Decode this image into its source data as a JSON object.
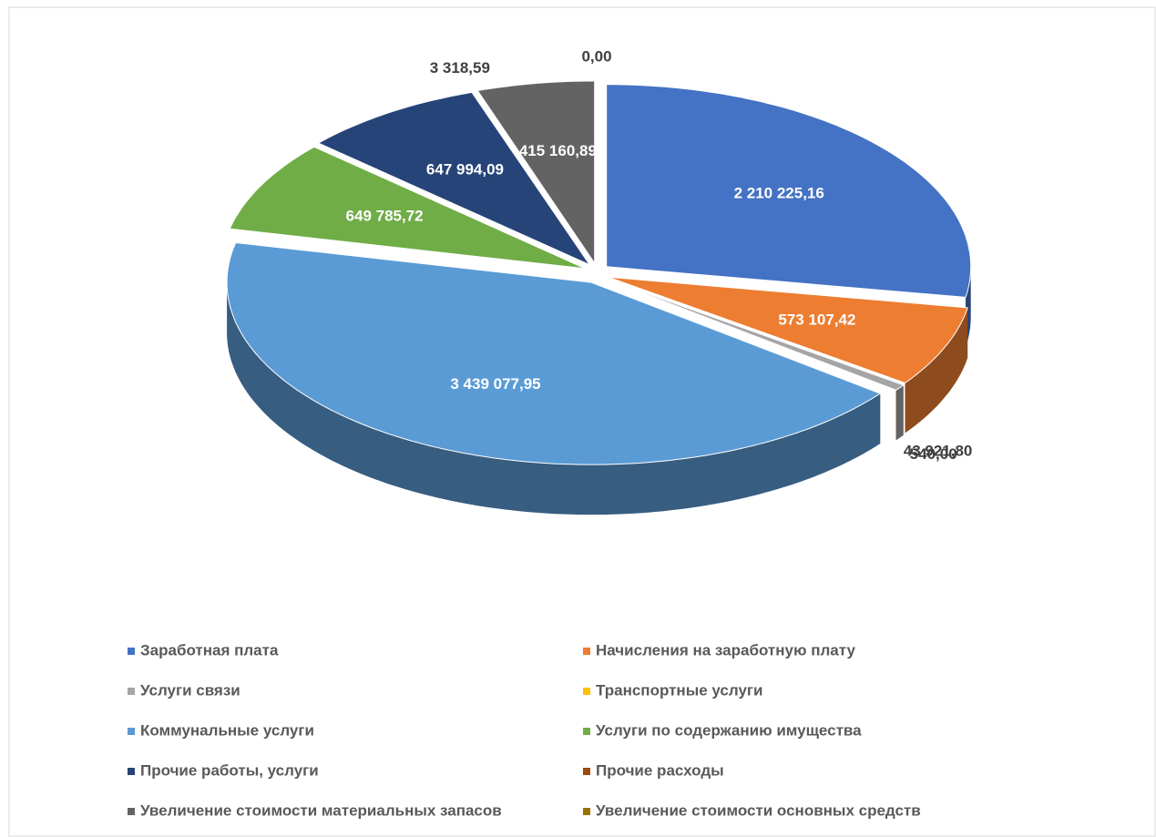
{
  "chart_data": {
    "type": "pie",
    "categories": [
      "Заработная плата",
      "Начисления на заработную плату",
      "Услуги связи",
      "Транспортные услуги",
      "Коммунальные услуги",
      "Услуги по содержанию имущества",
      "Прочие работы, услуги",
      "Прочие расходы",
      "Увеличение стоимости материальных запасов",
      "Увеличение стоимости основных средств"
    ],
    "values": [
      2210225.16,
      573107.42,
      43921.8,
      540.0,
      3439077.95,
      649785.72,
      647994.09,
      3318.59,
      415160.89,
      0.0
    ],
    "value_labels": [
      "2 210 225,16",
      "573 107,42",
      "43 921,80",
      "540,00",
      "3 439 077,95",
      "649 785,72",
      "647 994,09",
      "3 318,59",
      "415 160,89",
      "0,00"
    ],
    "colors": [
      "#4472c4",
      "#ed7d31",
      "#a5a5a5",
      "#ffc000",
      "#5b9bd5",
      "#70ad47",
      "#264478",
      "#9e480e",
      "#636363",
      "#997300"
    ],
    "legend": "bottom"
  }
}
